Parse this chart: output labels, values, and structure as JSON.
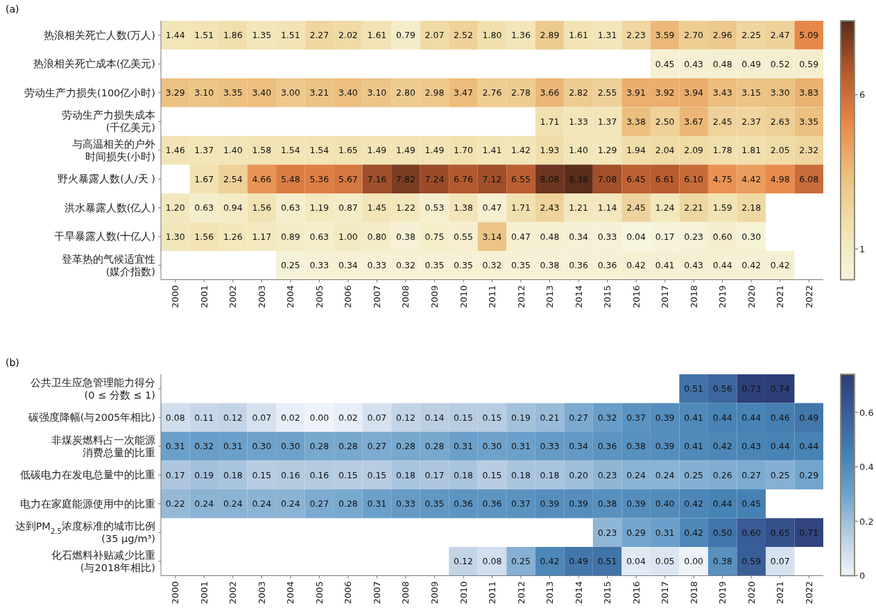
{
  "chart_data": [
    {
      "type": "heatmap",
      "title": "(a)",
      "categories": [
        "2000",
        "2001",
        "2002",
        "2003",
        "2004",
        "2005",
        "2006",
        "2007",
        "2008",
        "2009",
        "2010",
        "2011",
        "2012",
        "2013",
        "2014",
        "2015",
        "2016",
        "2017",
        "2018",
        "2019",
        "2020",
        "2021",
        "2022"
      ],
      "y_categories": [
        "热浪相关死亡人数(万人)",
        "热浪相关死亡成本(亿美元)",
        "劳动生产力损失(100亿小时)",
        [
          "劳动生产力损失成本",
          "(千亿美元)"
        ],
        [
          "与高温相关的户外",
          "时间损失(小时)"
        ],
        "野火暴露人数(人/天 )",
        "洪水暴露人数(亿人)",
        "干旱暴露人数(十亿人)",
        [
          "登革热的气候适宜性",
          "(媒介指数)"
        ]
      ],
      "cell_labels": [
        [
          "1.44",
          "1.51",
          "1.86",
          "1.35",
          "1.51",
          "2.27",
          "2.02",
          "1.61",
          "0.79",
          "2.07",
          "2.52",
          "1.80",
          "1.36",
          "2.89",
          "1.61",
          "1.31",
          "2.23",
          "3.59",
          "2.70",
          "2.96",
          "2.25",
          "2.47",
          "5.09"
        ],
        [
          null,
          null,
          null,
          null,
          null,
          null,
          null,
          null,
          null,
          null,
          null,
          null,
          null,
          null,
          null,
          null,
          null,
          "0.45",
          "0.43",
          "0.48",
          "0.49",
          "0.52",
          "0.59"
        ],
        [
          "3.29",
          "3.10",
          "3.35",
          "3.40",
          "3.00",
          "3.21",
          "3.40",
          "3.10",
          "2.80",
          "2.98",
          "3.47",
          "2.76",
          "2.78",
          "3.66",
          "2.82",
          "2.55",
          "3.91",
          "3.92",
          "3.94",
          "3.43",
          "3.15",
          "3.30",
          "3.83"
        ],
        [
          null,
          null,
          null,
          null,
          null,
          null,
          null,
          null,
          null,
          null,
          null,
          null,
          null,
          "1.71",
          "1.33",
          "1.37",
          "3.38",
          "2.50",
          "3.67",
          "2.45",
          "2.37",
          "2.63",
          "3.35"
        ],
        [
          "1.46",
          "1.37",
          "1.40",
          "1.58",
          "1.54",
          "1.54",
          "1.65",
          "1.49",
          "1.49",
          "1.49",
          "1.70",
          "1.41",
          "1.42",
          "1.93",
          "1.40",
          "1.29",
          "1.94",
          "2.04",
          "2.09",
          "1.78",
          "1.81",
          "2.05",
          "2.32"
        ],
        [
          null,
          "1.67",
          "2.54",
          "4.66",
          "5.48",
          "5.36",
          "5.67",
          "7.16",
          "7.82",
          "7.24",
          "6.76",
          "7.12",
          "6.55",
          "8.08",
          "8.38",
          "7.08",
          "6.45",
          "6.61",
          "6.10",
          "4.75",
          "4.42",
          "4.98",
          "6.08"
        ],
        [
          "1.20",
          "0.63",
          "0.94",
          "1.56",
          "0.63",
          "1.19",
          "0.87",
          "1.45",
          "1.22",
          "0.53",
          "1.38",
          "0.47",
          "1.71",
          "2.43",
          "1.21",
          "1.14",
          "2.45",
          "1.24",
          "2.21",
          "1.59",
          "2.18",
          null,
          null
        ],
        [
          "1.30",
          "1.56",
          "1.26",
          "1.17",
          "0.89",
          "0.63",
          "1.00",
          "0.80",
          "0.38",
          "0.75",
          "0.55",
          "3.14",
          "0.47",
          "0.48",
          "0.34",
          "0.33",
          "0.04",
          "0.17",
          "0.23",
          "0.60",
          "0.30",
          null,
          null
        ],
        [
          null,
          null,
          null,
          null,
          "0.25",
          "0.33",
          "0.34",
          "0.33",
          "0.32",
          "0.35",
          "0.35",
          "0.32",
          "0.35",
          "0.38",
          "0.36",
          "0.36",
          "0.42",
          "0.41",
          "0.43",
          "0.44",
          "0.42",
          "0.42",
          null
        ]
      ],
      "cells": [
        [
          1.44,
          1.51,
          1.86,
          1.35,
          1.51,
          2.27,
          2.02,
          1.61,
          0.79,
          2.07,
          2.52,
          1.8,
          1.36,
          2.89,
          1.61,
          1.31,
          2.23,
          3.59,
          2.7,
          2.96,
          2.25,
          2.47,
          5.09
        ],
        [
          null,
          null,
          null,
          null,
          null,
          null,
          null,
          null,
          null,
          null,
          null,
          null,
          null,
          null,
          null,
          null,
          null,
          0.45,
          0.43,
          0.48,
          0.49,
          0.52,
          0.59
        ],
        [
          3.29,
          3.1,
          3.35,
          3.4,
          3.0,
          3.21,
          3.4,
          3.1,
          2.8,
          2.98,
          3.47,
          2.76,
          2.78,
          3.66,
          2.82,
          2.55,
          3.91,
          3.92,
          3.94,
          3.43,
          3.15,
          3.3,
          3.83
        ],
        [
          null,
          null,
          null,
          null,
          null,
          null,
          null,
          null,
          null,
          null,
          null,
          null,
          null,
          1.71,
          1.33,
          1.37,
          3.38,
          2.5,
          3.67,
          2.45,
          2.37,
          2.63,
          3.35
        ],
        [
          1.46,
          1.37,
          1.4,
          1.58,
          1.54,
          1.54,
          1.65,
          1.49,
          1.49,
          1.49,
          1.7,
          1.41,
          1.42,
          1.93,
          1.4,
          1.29,
          1.94,
          2.04,
          2.09,
          1.78,
          1.81,
          2.05,
          2.32
        ],
        [
          null,
          1.67,
          2.54,
          4.66,
          5.48,
          5.36,
          5.67,
          7.16,
          7.82,
          7.24,
          6.76,
          7.12,
          6.55,
          8.08,
          8.38,
          7.08,
          6.45,
          6.61,
          6.1,
          4.75,
          4.42,
          4.98,
          6.08
        ],
        [
          1.2,
          0.63,
          0.94,
          1.56,
          0.63,
          1.19,
          0.87,
          1.45,
          1.22,
          0.53,
          1.38,
          0.47,
          1.71,
          2.43,
          1.21,
          1.14,
          2.45,
          1.24,
          2.21,
          1.59,
          2.18,
          null,
          null
        ],
        [
          1.3,
          1.56,
          1.26,
          1.17,
          0.89,
          0.63,
          1.0,
          0.8,
          0.38,
          0.75,
          0.55,
          3.14,
          0.47,
          0.48,
          0.34,
          0.33,
          0.04,
          0.17,
          0.23,
          0.6,
          0.3,
          null,
          null
        ],
        [
          null,
          null,
          null,
          null,
          0.25,
          0.33,
          0.34,
          0.33,
          0.32,
          0.35,
          0.35,
          0.32,
          0.35,
          0.38,
          0.36,
          0.36,
          0.42,
          0.41,
          0.43,
          0.44,
          0.42,
          0.42,
          null
        ]
      ],
      "clim": [
        0,
        8.4
      ],
      "cticks": [
        1,
        6
      ],
      "data_labels": true
    },
    {
      "type": "heatmap",
      "title": "(b)",
      "categories": [
        "2000",
        "2001",
        "2002",
        "2003",
        "2004",
        "2005",
        "2006",
        "2007",
        "2008",
        "2009",
        "2010",
        "2011",
        "2012",
        "2013",
        "2014",
        "2015",
        "2016",
        "2017",
        "2018",
        "2019",
        "2020",
        "2021",
        "2022"
      ],
      "y_categories": [
        [
          "公共卫生应急管理能力得分",
          "(0 ≤ 分数 ≤ 1)"
        ],
        "碳强度降幅(与2005年相比)",
        [
          "非煤炭燃料占一次能源",
          "消费总量的比重"
        ],
        "低碳电力在发电总量中的比重",
        "电力在家庭能源使用中的比重",
        [
          "达到PM$_{2.5}$浓度标准的城市比例",
          "(35 μg/m³)"
        ],
        [
          "化石燃料补贴减少比重",
          "(与2018年相比)"
        ]
      ],
      "cell_labels": [
        [
          null,
          null,
          null,
          null,
          null,
          null,
          null,
          null,
          null,
          null,
          null,
          null,
          null,
          null,
          null,
          null,
          null,
          null,
          "0.51",
          "0.56",
          "0.73",
          "0.74",
          null
        ],
        [
          "0.08",
          "0.11",
          "0.12",
          "0.07",
          "0.02",
          "0.00",
          "0.02",
          "0.07",
          "0.12",
          "0.14",
          "0.15",
          "0.15",
          "0.19",
          "0.21",
          "0.27",
          "0.32",
          "0.37",
          "0.39",
          "0.41",
          "0.44",
          "0.44",
          "0.46",
          "0.49"
        ],
        [
          "0.31",
          "0.32",
          "0.31",
          "0.30",
          "0.30",
          "0.28",
          "0.28",
          "0.27",
          "0.28",
          "0.28",
          "0.31",
          "0.30",
          "0.31",
          "0.33",
          "0.34",
          "0.36",
          "0.38",
          "0.39",
          "0.41",
          "0.42",
          "0.43",
          "0.44",
          "0.44"
        ],
        [
          "0.17",
          "0.19",
          "0.18",
          "0.15",
          "0.16",
          "0.16",
          "0.15",
          "0.15",
          "0.18",
          "0.17",
          "0.18",
          "0.15",
          "0.18",
          "0.18",
          "0.20",
          "0.23",
          "0.24",
          "0.24",
          "0.25",
          "0.26",
          "0.27",
          "0.25",
          "0.29"
        ],
        [
          "0.22",
          "0.24",
          "0.24",
          "0.24",
          "0.24",
          "0.27",
          "0.28",
          "0.31",
          "0.33",
          "0.35",
          "0.36",
          "0.36",
          "0.37",
          "0.39",
          "0.39",
          "0.38",
          "0.39",
          "0.40",
          "0.42",
          "0.44",
          "0.45",
          null,
          null
        ],
        [
          null,
          null,
          null,
          null,
          null,
          null,
          null,
          null,
          null,
          null,
          null,
          null,
          null,
          null,
          null,
          "0.23",
          "0.29",
          "0.31",
          "0.42",
          "0.50",
          "0.60",
          "0.65",
          "0.71"
        ],
        [
          null,
          null,
          null,
          null,
          null,
          null,
          null,
          null,
          null,
          null,
          "0.12",
          "0.08",
          "0.25",
          "0.42",
          "0.49",
          "0.51",
          "0.04",
          "0.05",
          "0.00",
          "0.38",
          "0.59",
          "0.07",
          null
        ]
      ],
      "cells": [
        [
          null,
          null,
          null,
          null,
          null,
          null,
          null,
          null,
          null,
          null,
          null,
          null,
          null,
          null,
          null,
          null,
          null,
          null,
          0.51,
          0.56,
          0.73,
          0.74,
          null
        ],
        [
          0.08,
          0.11,
          0.12,
          0.07,
          0.02,
          0.0,
          0.02,
          0.07,
          0.12,
          0.14,
          0.15,
          0.15,
          0.19,
          0.21,
          0.27,
          0.32,
          0.37,
          0.39,
          0.41,
          0.44,
          0.44,
          0.46,
          0.49
        ],
        [
          0.31,
          0.32,
          0.31,
          0.3,
          0.3,
          0.28,
          0.28,
          0.27,
          0.28,
          0.28,
          0.31,
          0.3,
          0.31,
          0.33,
          0.34,
          0.36,
          0.38,
          0.39,
          0.41,
          0.42,
          0.43,
          0.44,
          0.44
        ],
        [
          0.17,
          0.19,
          0.18,
          0.15,
          0.16,
          0.16,
          0.15,
          0.15,
          0.18,
          0.17,
          0.18,
          0.15,
          0.18,
          0.18,
          0.2,
          0.23,
          0.24,
          0.24,
          0.25,
          0.26,
          0.27,
          0.25,
          0.29
        ],
        [
          0.22,
          0.24,
          0.24,
          0.24,
          0.24,
          0.27,
          0.28,
          0.31,
          0.33,
          0.35,
          0.36,
          0.36,
          0.37,
          0.39,
          0.39,
          0.38,
          0.39,
          0.4,
          0.42,
          0.44,
          0.45,
          null,
          null
        ],
        [
          null,
          null,
          null,
          null,
          null,
          null,
          null,
          null,
          null,
          null,
          null,
          null,
          null,
          null,
          null,
          0.23,
          0.29,
          0.31,
          0.42,
          0.5,
          0.6,
          0.65,
          0.71
        ],
        [
          null,
          null,
          null,
          null,
          null,
          null,
          null,
          null,
          null,
          null,
          0.12,
          0.08,
          0.25,
          0.42,
          0.49,
          0.51,
          0.04,
          0.05,
          0.0,
          0.38,
          0.59,
          0.07,
          null
        ]
      ],
      "clim": [
        0,
        0.74
      ],
      "cticks": [
        0,
        0.2,
        0.4,
        0.6
      ],
      "data_labels": true
    }
  ]
}
